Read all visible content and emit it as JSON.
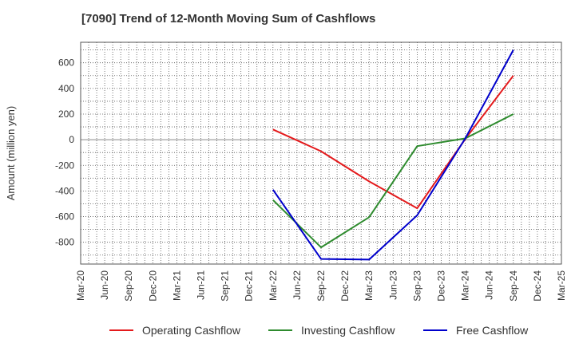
{
  "chart_data": {
    "type": "line",
    "title": "[7090]  Trend of 12-Month Moving Sum of Cashflows",
    "ylabel": "Amount (million yen)",
    "xlabel": "",
    "ylim": [
      -970,
      760
    ],
    "yticks": [
      600,
      400,
      200,
      0,
      -200,
      -400,
      -600,
      -800
    ],
    "categories": [
      "Mar-20",
      "Jun-20",
      "Sep-20",
      "Dec-20",
      "Mar-21",
      "Jun-21",
      "Sep-21",
      "Dec-21",
      "Mar-22",
      "Jun-22",
      "Sep-22",
      "Dec-22",
      "Mar-23",
      "Jun-23",
      "Sep-23",
      "Dec-23",
      "Mar-24",
      "Jun-24",
      "Sep-24",
      "Dec-24",
      "Mar-25"
    ],
    "grid": true,
    "legend_position": "bottom",
    "series": [
      {
        "name": "Operating Cashflow",
        "color": "#e41a1c",
        "points": [
          [
            "Mar-22",
            80
          ],
          [
            "Sep-22",
            -90
          ],
          [
            "Mar-23",
            -325
          ],
          [
            "Sep-23",
            -535
          ],
          [
            "Mar-24",
            5
          ],
          [
            "Sep-24",
            500
          ]
        ]
      },
      {
        "name": "Investing Cashflow",
        "color": "#2e8b2e",
        "points": [
          [
            "Mar-22",
            -470
          ],
          [
            "Sep-22",
            -840
          ],
          [
            "Mar-23",
            -605
          ],
          [
            "Sep-23",
            -50
          ],
          [
            "Mar-24",
            10
          ],
          [
            "Sep-24",
            200
          ]
        ]
      },
      {
        "name": "Free Cashflow",
        "color": "#0000cc",
        "points": [
          [
            "Mar-22",
            -390
          ],
          [
            "Sep-22",
            -930
          ],
          [
            "Mar-23",
            -935
          ],
          [
            "Sep-23",
            -590
          ],
          [
            "Mar-24",
            10
          ],
          [
            "Sep-24",
            700
          ]
        ]
      }
    ]
  }
}
